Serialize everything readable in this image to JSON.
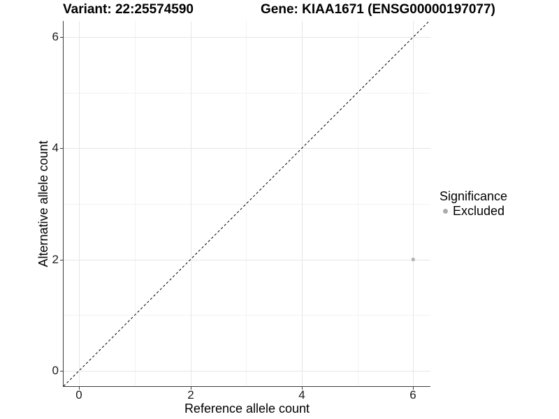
{
  "header": {
    "variant_title": "Variant: 22:25574590",
    "gene_title": "Gene: KIAA1671 (ENSG00000197077)"
  },
  "chart_data": {
    "type": "scatter",
    "title": "Variant: 22:25574590 | Gene: KIAA1671 (ENSG00000197077)",
    "xlabel": "Reference allele count",
    "ylabel": "Alternative allele count",
    "xlim": [
      -0.28,
      6.31
    ],
    "ylim": [
      -0.28,
      6.29
    ],
    "x_ticks": [
      0,
      2,
      4,
      6
    ],
    "y_ticks": [
      0,
      2,
      4,
      6
    ],
    "x_minor_ticks": [
      1,
      3,
      5
    ],
    "y_minor_ticks": [
      1,
      3,
      5
    ],
    "grid": true,
    "series": [
      {
        "name": "Excluded",
        "marker": "circle",
        "color": "#b3b3b3",
        "points": [
          {
            "x": 6,
            "y": 2
          }
        ]
      }
    ],
    "identity_line": {
      "slope": 1,
      "intercept": 0,
      "style": "dashed",
      "color": "#000000"
    },
    "legend": {
      "title": "Significance",
      "position": "right",
      "entries": [
        {
          "label": "Excluded",
          "color": "#ababab"
        }
      ]
    }
  },
  "colors": {
    "background": "#ffffff",
    "major_grid": "#e6e6e6",
    "minor_grid": "#f2f2f2",
    "axis_line": "#3d3d3d",
    "tick_text": "#1a1a1a",
    "point": "#b3b3b3"
  }
}
